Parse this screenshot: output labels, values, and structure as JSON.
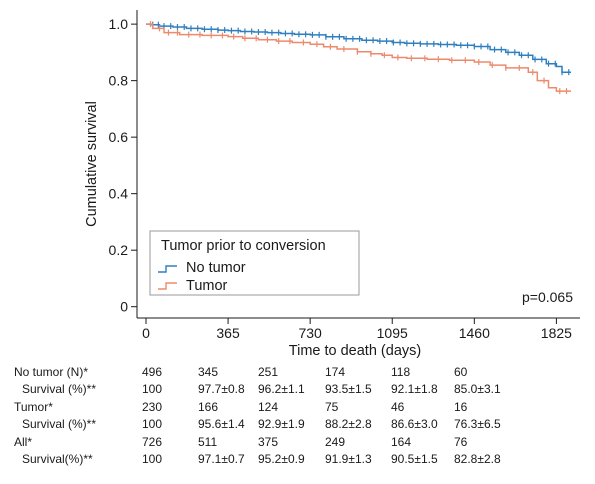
{
  "chart_data": {
    "type": "line",
    "subtype": "kaplan-meier step curve",
    "xlabel": "Time to death (days)",
    "ylabel": "Cumulative survival",
    "xlim": [
      -40,
      1930
    ],
    "ylim": [
      -0.04,
      1.05
    ],
    "xticks": [
      0,
      365,
      730,
      1095,
      1460,
      1825
    ],
    "yticks": [
      {
        "value": 1.0,
        "label": "1.0"
      },
      {
        "value": 0.8,
        "label": "0.8"
      },
      {
        "value": 0.6,
        "label": "0.6"
      },
      {
        "value": 0.4,
        "label": "0.4"
      },
      {
        "value": 0.2,
        "label": "0.2"
      },
      {
        "value": 0.0,
        "label": "0"
      }
    ],
    "grid": false,
    "legend": {
      "title": "Tumor prior to conversion",
      "placement": "bottom-left",
      "entries": [
        "No tumor",
        "Tumor"
      ]
    },
    "annotation": "p=0.065",
    "series": [
      {
        "name": "No tumor",
        "color": "#2e7fc0",
        "points": [
          [
            0,
            1.0
          ],
          [
            20,
            0.998
          ],
          [
            60,
            0.993
          ],
          [
            120,
            0.99
          ],
          [
            180,
            0.985
          ],
          [
            250,
            0.982
          ],
          [
            320,
            0.979
          ],
          [
            365,
            0.977
          ],
          [
            420,
            0.974
          ],
          [
            480,
            0.972
          ],
          [
            540,
            0.97
          ],
          [
            600,
            0.967
          ],
          [
            660,
            0.964
          ],
          [
            730,
            0.962
          ],
          [
            800,
            0.955
          ],
          [
            880,
            0.948
          ],
          [
            960,
            0.943
          ],
          [
            1030,
            0.94
          ],
          [
            1095,
            0.935
          ],
          [
            1150,
            0.932
          ],
          [
            1220,
            0.93
          ],
          [
            1300,
            0.928
          ],
          [
            1380,
            0.925
          ],
          [
            1460,
            0.921
          ],
          [
            1530,
            0.91
          ],
          [
            1600,
            0.9
          ],
          [
            1660,
            0.89
          ],
          [
            1720,
            0.875
          ],
          [
            1780,
            0.86
          ],
          [
            1825,
            0.85
          ],
          [
            1850,
            0.83
          ],
          [
            1890,
            0.83
          ]
        ],
        "censor_x": [
          30,
          55,
          80,
          110,
          140,
          170,
          200,
          230,
          260,
          290,
          320,
          350,
          380,
          410,
          440,
          470,
          500,
          530,
          560,
          590,
          620,
          650,
          680,
          710,
          740,
          770,
          800,
          830,
          860,
          890,
          920,
          950,
          980,
          1010,
          1040,
          1070,
          1100,
          1130,
          1160,
          1190,
          1220,
          1250,
          1280,
          1310,
          1340,
          1370,
          1400,
          1430,
          1460,
          1490,
          1520,
          1550,
          1580,
          1610,
          1640,
          1670,
          1700,
          1730,
          1760,
          1790,
          1820,
          1850,
          1880
        ]
      },
      {
        "name": "Tumor",
        "color": "#ee8a6c",
        "points": [
          [
            0,
            1.0
          ],
          [
            30,
            0.985
          ],
          [
            80,
            0.97
          ],
          [
            150,
            0.963
          ],
          [
            250,
            0.96
          ],
          [
            365,
            0.956
          ],
          [
            430,
            0.95
          ],
          [
            500,
            0.945
          ],
          [
            580,
            0.94
          ],
          [
            650,
            0.935
          ],
          [
            730,
            0.929
          ],
          [
            790,
            0.92
          ],
          [
            850,
            0.912
          ],
          [
            940,
            0.902
          ],
          [
            1000,
            0.895
          ],
          [
            1050,
            0.89
          ],
          [
            1095,
            0.882
          ],
          [
            1160,
            0.879
          ],
          [
            1250,
            0.876
          ],
          [
            1350,
            0.872
          ],
          [
            1460,
            0.866
          ],
          [
            1530,
            0.855
          ],
          [
            1600,
            0.845
          ],
          [
            1700,
            0.83
          ],
          [
            1740,
            0.8
          ],
          [
            1780,
            0.8
          ],
          [
            1790,
            0.775
          ],
          [
            1825,
            0.763
          ],
          [
            1890,
            0.763
          ]
        ],
        "censor_x": [
          20,
          60,
          100,
          140,
          190,
          240,
          290,
          340,
          390,
          440,
          490,
          540,
          590,
          640,
          700,
          760,
          820,
          880,
          940,
          1000,
          1060,
          1120,
          1180,
          1240,
          1300,
          1360,
          1420,
          1480,
          1540,
          1600,
          1660,
          1720,
          1770,
          1840,
          1870
        ]
      }
    ],
    "risk_table": {
      "columns": [
        "0",
        "365",
        "730",
        "1095",
        "1460",
        "1825"
      ],
      "rows": [
        {
          "label": "No tumor (N)*",
          "indent": false,
          "values": [
            "496",
            "345",
            "251",
            "174",
            "118",
            "60"
          ]
        },
        {
          "label": "Survival (%)**",
          "indent": true,
          "values": [
            "100",
            "97.7±0.8",
            "96.2±1.1",
            "93.5±1.5",
            "92.1±1.8",
            "85.0±3.1"
          ]
        },
        {
          "label": "Tumor*",
          "indent": false,
          "values": [
            "230",
            "166",
            "124",
            "75",
            "46",
            "16"
          ]
        },
        {
          "label": "Survival (%)**",
          "indent": true,
          "values": [
            "100",
            "95.6±1.4",
            "92.9±1.9",
            "88.2±2.8",
            "86.6±3.0",
            "76.3±6.5"
          ]
        },
        {
          "label": "All*",
          "indent": false,
          "values": [
            "726",
            "511",
            "375",
            "249",
            "164",
            "76"
          ]
        },
        {
          "label": "Survival(%)**",
          "indent": true,
          "values": [
            "100",
            "97.1±0.7",
            "95.2±0.9",
            "91.9±1.3",
            "90.5±1.5",
            "82.8±2.8"
          ]
        }
      ]
    }
  }
}
